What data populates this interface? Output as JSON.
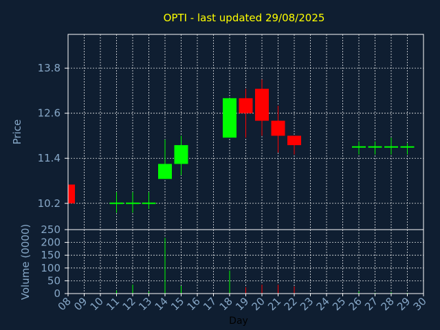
{
  "title": "OPTI - last updated 29/08/2025",
  "colors": {
    "background": "#0f1e31",
    "up": "#00ff00",
    "down": "#ff0000",
    "title": "#ffff00",
    "axis_text": "#87a8c8",
    "grid": "#ffffff"
  },
  "chart_data": [
    {
      "type": "candlestick",
      "ylabel": "Price",
      "ylim": [
        9.5,
        14.7
      ],
      "yticks": [
        "10.2",
        "11.4",
        "12.6",
        "13.8"
      ],
      "grid": true,
      "candles": [
        {
          "day": 8,
          "open": 10.7,
          "high": 10.7,
          "low": 10.2,
          "close": 10.2
        },
        {
          "day": 11,
          "open": 10.2,
          "high": 10.5,
          "low": 9.95,
          "close": 10.22
        },
        {
          "day": 12,
          "open": 10.2,
          "high": 10.5,
          "low": 9.95,
          "close": 10.22
        },
        {
          "day": 13,
          "open": 10.2,
          "high": 10.5,
          "low": 10.05,
          "close": 10.22
        },
        {
          "day": 14,
          "open": 10.85,
          "high": 11.9,
          "low": 10.85,
          "close": 11.25
        },
        {
          "day": 15,
          "open": 11.25,
          "high": 12.0,
          "low": 10.95,
          "close": 11.75
        },
        {
          "day": 18,
          "open": 11.95,
          "high": 13.0,
          "low": 11.95,
          "close": 13.0
        },
        {
          "day": 19,
          "open": 13.0,
          "high": 13.25,
          "low": 11.95,
          "close": 12.6
        },
        {
          "day": 20,
          "open": 13.25,
          "high": 13.5,
          "low": 12.0,
          "close": 12.4
        },
        {
          "day": 21,
          "open": 12.4,
          "high": 12.8,
          "low": 11.55,
          "close": 12.0
        },
        {
          "day": 22,
          "open": 12.0,
          "high": 12.0,
          "low": 11.5,
          "close": 11.75
        },
        {
          "day": 26,
          "open": 11.7,
          "high": 11.85,
          "low": 11.5,
          "close": 11.72
        },
        {
          "day": 27,
          "open": 11.7,
          "high": 11.85,
          "low": 11.5,
          "close": 11.72
        },
        {
          "day": 28,
          "open": 11.7,
          "high": 11.95,
          "low": 11.5,
          "close": 11.72
        },
        {
          "day": 29,
          "open": 11.7,
          "high": 11.8,
          "low": 11.5,
          "close": 11.72
        }
      ]
    },
    {
      "type": "bar",
      "ylabel": "Volume (0000)",
      "xlabel": "Day",
      "ylim": [
        0,
        250
      ],
      "yticks": [
        "0",
        "50",
        "100",
        "150",
        "200",
        "250"
      ],
      "xticks": [
        "08",
        "09",
        "10",
        "11",
        "12",
        "13",
        "14",
        "15",
        "16",
        "17",
        "18",
        "19",
        "20",
        "21",
        "22",
        "23",
        "24",
        "25",
        "26",
        "27",
        "28",
        "29",
        "30"
      ],
      "grid": true,
      "volumes": [
        {
          "day": 8,
          "value": 2
        },
        {
          "day": 11,
          "value": 12
        },
        {
          "day": 12,
          "value": 35
        },
        {
          "day": 13,
          "value": 8
        },
        {
          "day": 14,
          "value": 218
        },
        {
          "day": 15,
          "value": 30
        },
        {
          "day": 18,
          "value": 90
        },
        {
          "day": 19,
          "value": 25
        },
        {
          "day": 20,
          "value": 35
        },
        {
          "day": 21,
          "value": 35
        },
        {
          "day": 22,
          "value": 28
        },
        {
          "day": 26,
          "value": 8
        },
        {
          "day": 27,
          "value": 3
        },
        {
          "day": 28,
          "value": 5
        },
        {
          "day": 29,
          "value": 3
        }
      ]
    }
  ]
}
